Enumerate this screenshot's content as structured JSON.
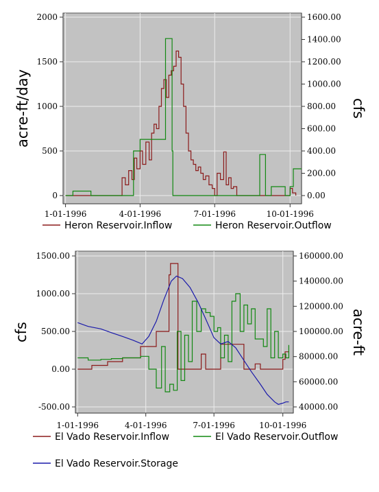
{
  "chart_data": [
    {
      "type": "line",
      "title": "",
      "x_ticks": [
        "1-01-1996",
        "4-01-1996",
        "7-01-1996",
        "10-01-1996"
      ],
      "x_range": [
        "1995-12-29",
        "1996-10-15"
      ],
      "ylabel_left": "acre-ft/day",
      "ylabel_right": "cfs",
      "ylim_left": [
        0,
        2000
      ],
      "ylim_right": [
        0,
        1600
      ],
      "yticks_left": [
        "0",
        "500",
        "1000",
        "1500",
        "2000"
      ],
      "yticks_right": [
        "0.00",
        "200.00",
        "400.00",
        "600.00",
        "800.00",
        "1000.00",
        "1200.00",
        "1400.00",
        "1600.00"
      ],
      "grid": true,
      "legend_position": "bottom",
      "series": [
        {
          "name": "Heron Reservoir.Inflow",
          "color": "#8b1a1a",
          "axis": "left",
          "x": [
            "1996-01-01",
            "1996-03-01",
            "1996-03-10",
            "1996-03-14",
            "1996-03-18",
            "1996-03-22",
            "1996-03-25",
            "1996-03-28",
            "1996-04-01",
            "1996-04-04",
            "1996-04-08",
            "1996-04-12",
            "1996-04-15",
            "1996-04-18",
            "1996-04-21",
            "1996-04-24",
            "1996-04-27",
            "1996-04-30",
            "1996-05-03",
            "1996-05-06",
            "1996-05-09",
            "1996-05-12",
            "1996-05-15",
            "1996-05-18",
            "1996-05-21",
            "1996-05-24",
            "1996-05-27",
            "1996-05-30",
            "1996-06-02",
            "1996-06-05",
            "1996-06-08",
            "1996-06-11",
            "1996-06-14",
            "1996-06-17",
            "1996-06-20",
            "1996-06-24",
            "1996-06-28",
            "1996-07-01",
            "1996-07-04",
            "1996-07-08",
            "1996-07-12",
            "1996-07-15",
            "1996-07-18",
            "1996-07-21",
            "1996-07-24",
            "1996-07-28",
            "1996-08-01",
            "1996-08-05",
            "1996-08-10",
            "1996-08-15",
            "1996-08-20",
            "1996-08-25",
            "1996-09-01",
            "1996-09-08",
            "1996-09-15",
            "1996-09-22",
            "1996-09-28",
            "1996-10-01",
            "1996-10-04",
            "1996-10-08"
          ],
          "y": [
            0,
            0,
            200,
            120,
            280,
            180,
            420,
            300,
            500,
            350,
            600,
            400,
            700,
            800,
            750,
            1000,
            1200,
            1300,
            1100,
            1350,
            1400,
            1450,
            1620,
            1550,
            1250,
            1000,
            700,
            500,
            400,
            350,
            280,
            320,
            250,
            180,
            220,
            120,
            80,
            0,
            250,
            180,
            490,
            120,
            200,
            80,
            100,
            0,
            0,
            0,
            0,
            0,
            0,
            0,
            0,
            0,
            0,
            0,
            0,
            80,
            30,
            0
          ]
        },
        {
          "name": "Heron Reservoir.Outflow",
          "color": "#118811",
          "axis": "left",
          "x": [
            "1996-01-01",
            "1996-01-10",
            "1996-01-30",
            "1996-02-01",
            "1996-03-01",
            "1996-03-24",
            "1996-04-01",
            "1996-04-28",
            "1996-05-02",
            "1996-05-04",
            "1996-05-10",
            "1996-05-11",
            "1996-07-30",
            "1996-08-25",
            "1996-08-30",
            "1996-09-01",
            "1996-09-05",
            "1996-09-08",
            "1996-09-25",
            "1996-10-01",
            "1996-10-05",
            "1996-10-15"
          ],
          "y": [
            0,
            50,
            50,
            0,
            0,
            500,
            630,
            630,
            1760,
            1760,
            500,
            0,
            0,
            460,
            460,
            0,
            0,
            100,
            0,
            100,
            300,
            300
          ]
        }
      ]
    },
    {
      "type": "line",
      "title": "",
      "x_ticks": [
        "1-01-1996",
        "4-01-1996",
        "7-01-1996",
        "10-01-1996"
      ],
      "x_range": [
        "1995-12-29",
        "1996-10-15"
      ],
      "ylabel_left": "cfs",
      "ylabel_right": "acre-ft",
      "ylim_left": [
        -500,
        1500
      ],
      "ylim_right": [
        40000,
        160000
      ],
      "yticks_left": [
        "-500.00",
        "0.00",
        "500.00",
        "1000.00",
        "1500.00"
      ],
      "yticks_right": [
        "40000.00",
        "60000.00",
        "80000.00",
        "100000.00",
        "120000.00",
        "140000.00",
        "160000.00"
      ],
      "grid": true,
      "legend_position": "bottom",
      "series": [
        {
          "name": "El Vado Reservoir.Inflow",
          "color": "#8b1a1a",
          "axis": "left",
          "x": [
            "1996-01-01",
            "1996-01-20",
            "1996-02-10",
            "1996-03-01",
            "1996-03-25",
            "1996-04-15",
            "1996-04-29",
            "1996-05-02",
            "1996-05-04",
            "1996-05-12",
            "1996-05-14",
            "1996-06-10",
            "1996-06-14",
            "1996-06-20",
            "1996-07-10",
            "1996-07-20",
            "1996-08-10",
            "1996-08-20",
            "1996-08-25",
            "1996-09-01",
            "1996-09-15",
            "1996-09-25",
            "1996-10-01",
            "1996-10-04",
            "1996-10-09"
          ],
          "y": [
            0,
            50,
            100,
            150,
            300,
            500,
            500,
            1250,
            1400,
            1400,
            0,
            0,
            200,
            0,
            330,
            330,
            0,
            0,
            70,
            0,
            0,
            0,
            130,
            230,
            230
          ]
        },
        {
          "name": "El Vado Reservoir.Outflow",
          "color": "#118811",
          "axis": "left",
          "x": [
            "1996-01-01",
            "1996-01-15",
            "1996-02-01",
            "1996-02-15",
            "1996-03-01",
            "1996-03-15",
            "1996-03-25",
            "1996-04-05",
            "1996-04-15",
            "1996-04-22",
            "1996-04-27",
            "1996-05-03",
            "1996-05-08",
            "1996-05-13",
            "1996-05-18",
            "1996-05-23",
            "1996-05-28",
            "1996-06-02",
            "1996-06-08",
            "1996-06-14",
            "1996-06-20",
            "1996-06-26",
            "1996-07-01",
            "1996-07-06",
            "1996-07-10",
            "1996-07-15",
            "1996-07-20",
            "1996-07-25",
            "1996-07-30",
            "1996-08-05",
            "1996-08-10",
            "1996-08-15",
            "1996-08-20",
            "1996-08-25",
            "1996-08-30",
            "1996-09-05",
            "1996-09-10",
            "1996-09-15",
            "1996-09-20",
            "1996-09-25",
            "1996-10-01",
            "1996-10-05",
            "1996-10-09"
          ],
          "y": [
            150,
            120,
            130,
            140,
            150,
            150,
            170,
            0,
            -250,
            300,
            -300,
            -200,
            -280,
            500,
            -150,
            450,
            100,
            900,
            500,
            800,
            750,
            700,
            500,
            550,
            150,
            450,
            100,
            900,
            1000,
            500,
            850,
            600,
            800,
            400,
            400,
            300,
            800,
            150,
            500,
            150,
            200,
            150,
            320
          ]
        },
        {
          "name": "El Vado Reservoir.Storage",
          "color": "#1a1aaa",
          "axis": "right",
          "x": [
            "1996-01-01",
            "1996-01-15",
            "1996-02-01",
            "1996-02-15",
            "1996-03-01",
            "1996-03-15",
            "1996-03-27",
            "1996-04-05",
            "1996-04-15",
            "1996-04-25",
            "1996-05-05",
            "1996-05-12",
            "1996-05-20",
            "1996-05-30",
            "1996-06-10",
            "1996-06-20",
            "1996-07-01",
            "1996-07-10",
            "1996-07-20",
            "1996-07-30",
            "1996-08-10",
            "1996-08-20",
            "1996-09-01",
            "1996-09-10",
            "1996-09-20",
            "1996-09-25",
            "1996-10-01",
            "1996-10-05",
            "1996-10-09"
          ],
          "y": [
            107000,
            104000,
            102000,
            99000,
            96000,
            93000,
            90000,
            96000,
            108000,
            125000,
            140000,
            144000,
            142000,
            135000,
            123000,
            110000,
            95000,
            90000,
            92000,
            87000,
            77000,
            68000,
            58000,
            50000,
            44000,
            42000,
            43000,
            44000,
            44000
          ]
        }
      ]
    }
  ]
}
